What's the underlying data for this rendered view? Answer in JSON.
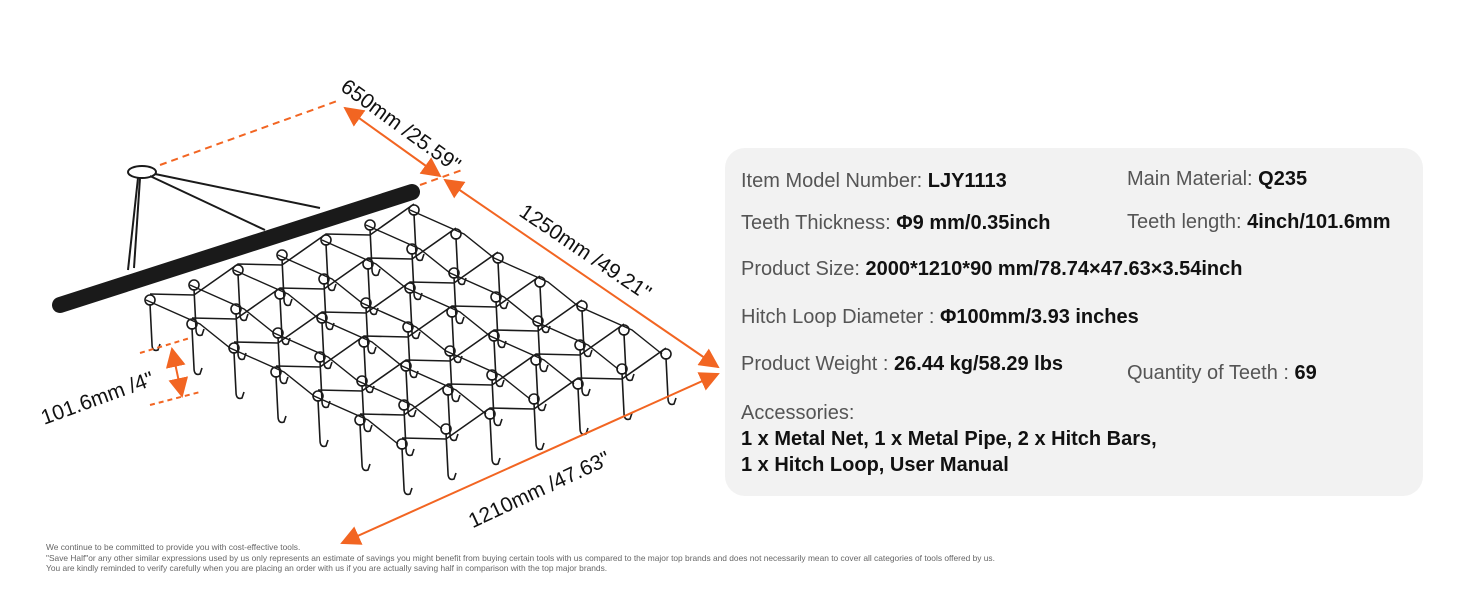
{
  "dimensions": {
    "width": "650mm /25.59\"",
    "length": "1250mm /49.21\"",
    "depth": "1210mm /47.63\"",
    "teeth": "101.6mm /4\""
  },
  "colors": {
    "accent": "#f26522",
    "panel": "#f2f2f2",
    "metal": "#1a1a1a"
  },
  "specs": {
    "model_label": "Item Model Number: ",
    "model": "LJY1113",
    "material_label": "Main Material: ",
    "material": "Q235",
    "thickness_label": "Teeth Thickness: ",
    "thickness": "Φ9 mm/0.35inch",
    "teeth_length_label": "Teeth length: ",
    "teeth_length": "4inch/101.6mm",
    "size_label": "Product Size: ",
    "size": "2000*1210*90 mm/78.74×47.63×3.54inch",
    "hitch_label": "Hitch Loop Diameter : ",
    "hitch": "Φ100mm/3.93 inches",
    "weight_label": "Product Weight : ",
    "weight": "26.44 kg/58.29 lbs",
    "qty_label": "Quantity of Teeth : ",
    "qty": "69",
    "accessories_label": "Accessories:",
    "accessories_1": "1 x Metal Net, 1 x Metal Pipe, 2 x Hitch Bars,",
    "accessories_2": "1 x Hitch Loop, User Manual"
  },
  "disclaimer": [
    "We continue to be committed to provide you with cost-effective tools.",
    "\"Save Half\"or any other similar expressions used by us only represents an estimate of savings you might benefit from buying certain tools with us compared to the major top brands and does not necessarily mean to cover all categories of tools offered by us.",
    "You are kindly reminded to verify carefully when you are placing an order with us if you are actually saving half in comparison with the top major brands."
  ]
}
